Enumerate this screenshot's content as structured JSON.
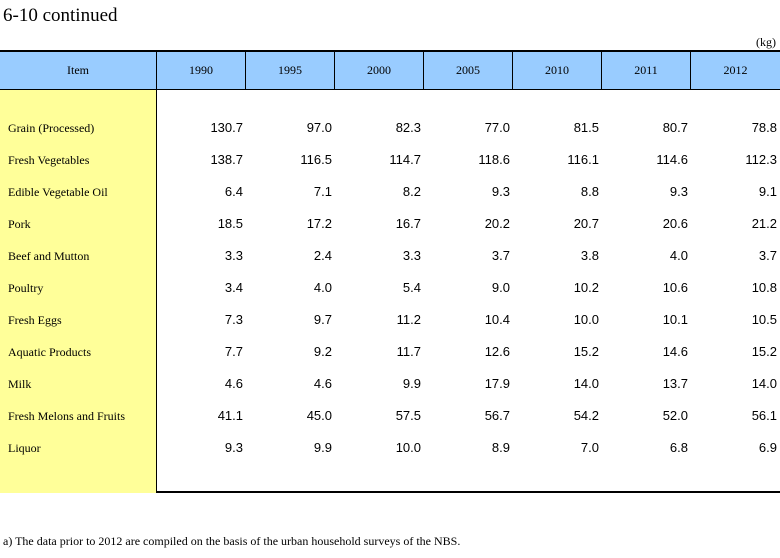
{
  "title": "6-10  continued",
  "unit": "(kg)",
  "columns": [
    "Item",
    "1990",
    "1995",
    "2000",
    "2005",
    "2010",
    "2011",
    "2012"
  ],
  "rows": [
    {
      "item": "Grain (Processed)",
      "values": [
        "130.7",
        "97.0",
        "82.3",
        "77.0",
        "81.5",
        "80.7",
        "78.8"
      ]
    },
    {
      "item": "Fresh Vegetables",
      "values": [
        "138.7",
        "116.5",
        "114.7",
        "118.6",
        "116.1",
        "114.6",
        "112.3"
      ]
    },
    {
      "item": "Edible Vegetable Oil",
      "values": [
        "6.4",
        "7.1",
        "8.2",
        "9.3",
        "8.8",
        "9.3",
        "9.1"
      ]
    },
    {
      "item": "Pork",
      "values": [
        "18.5",
        "17.2",
        "16.7",
        "20.2",
        "20.7",
        "20.6",
        "21.2"
      ]
    },
    {
      "item": "Beef and Mutton",
      "values": [
        "3.3",
        "2.4",
        "3.3",
        "3.7",
        "3.8",
        "4.0",
        "3.7"
      ]
    },
    {
      "item": "Poultry",
      "values": [
        "3.4",
        "4.0",
        "5.4",
        "9.0",
        "10.2",
        "10.6",
        "10.8"
      ]
    },
    {
      "item": "Fresh Eggs",
      "values": [
        "7.3",
        "9.7",
        "11.2",
        "10.4",
        "10.0",
        "10.1",
        "10.5"
      ]
    },
    {
      "item": "Aquatic Products",
      "values": [
        "7.7",
        "9.2",
        "11.7",
        "12.6",
        "15.2",
        "14.6",
        "15.2"
      ]
    },
    {
      "item": "Milk",
      "values": [
        "4.6",
        "4.6",
        "9.9",
        "17.9",
        "14.0",
        "13.7",
        "14.0"
      ]
    },
    {
      "item": "Fresh Melons and Fruits",
      "values": [
        "41.1",
        "45.0",
        "57.5",
        "56.7",
        "54.2",
        "52.0",
        "56.1"
      ]
    },
    {
      "item": "Liquor",
      "values": [
        "9.3",
        "9.9",
        "10.0",
        "8.9",
        "7.0",
        "6.8",
        "6.9"
      ]
    }
  ],
  "footnote": "a) The data prior to 2012 are compiled on the basis of the urban household surveys of the NBS.",
  "colors": {
    "header_bg": "#99ccff",
    "item_col_bg": "#ffff99"
  }
}
